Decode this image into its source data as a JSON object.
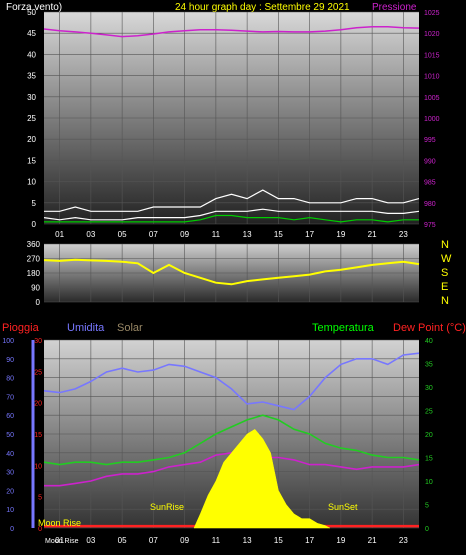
{
  "header": {
    "left_label": "Forza vento)",
    "title": "24 hour graph day : Settembre 29 2021",
    "right_label": "Pressione"
  },
  "colors": {
    "wind": "#ffffff",
    "gust": "#ffffff",
    "wind_avg": "#00cc00",
    "pressure": "#cc22cc",
    "direction": "#ffff00",
    "rain": "#ff2222",
    "humidity": "#7777ff",
    "solar": "#ffff00",
    "temperature": "#22cc22",
    "dewpoint": "#cc22cc",
    "label_solar": "#998866",
    "label_temp": "#00ff00",
    "label_dew": "#ff2222"
  },
  "compass": [
    "N",
    "W",
    "S",
    "E",
    "N"
  ],
  "bottom_labels": {
    "pioggia": "Pioggia",
    "umidita": "Umidita",
    "solar": "Solar",
    "temperatura": "Temperatura",
    "dewpoint": "Dew Point (°C)",
    "sunrise": "SunRise",
    "sunset": "SunSet",
    "moonrise": "Moon Rise",
    "moonset": "Moon Rise"
  },
  "chart_data": [
    {
      "type": "line",
      "name": "wind-pressure",
      "x_ticks": [
        "01",
        "03",
        "05",
        "07",
        "09",
        "11",
        "13",
        "15",
        "17",
        "19",
        "21",
        "23"
      ],
      "y_left_ticks": [
        0,
        5,
        10,
        15,
        20,
        25,
        30,
        35,
        40,
        45,
        50
      ],
      "y_left_range": [
        0,
        50
      ],
      "y_right_ticks": [
        975,
        980,
        985,
        990,
        995,
        1000,
        1005,
        1010,
        1015,
        1020,
        1025
      ],
      "y_right_range": [
        975,
        1025
      ],
      "x_range": [
        0,
        24
      ],
      "series": [
        {
          "key": "pressure",
          "axis": "right",
          "x": [
            0,
            1,
            2,
            3,
            4,
            5,
            6,
            7,
            8,
            9,
            10,
            11,
            12,
            13,
            14,
            15,
            16,
            17,
            18,
            19,
            20,
            21,
            22,
            23,
            24
          ],
          "y": [
            1021,
            1020.6,
            1020.3,
            1020,
            1019.6,
            1019.2,
            1019.4,
            1019.8,
            1020.3,
            1020.6,
            1020.8,
            1020.8,
            1020.7,
            1020.5,
            1020.3,
            1020.4,
            1020.3,
            1020.3,
            1020.5,
            1020.8,
            1021.3,
            1021.5,
            1021.5,
            1021.3,
            1021.2
          ]
        },
        {
          "key": "gust",
          "axis": "left",
          "x": [
            0,
            1,
            2,
            3,
            4,
            5,
            6,
            7,
            8,
            9,
            10,
            11,
            12,
            13,
            14,
            15,
            16,
            17,
            18,
            19,
            20,
            21,
            22,
            23,
            24
          ],
          "y": [
            3,
            3,
            4,
            3,
            3,
            3,
            3,
            4,
            4,
            4,
            4,
            6,
            7,
            6,
            8,
            6,
            6,
            5,
            5,
            5,
            6,
            6,
            5,
            5,
            6
          ]
        },
        {
          "key": "wind",
          "axis": "left",
          "x": [
            0,
            1,
            2,
            3,
            4,
            5,
            6,
            7,
            8,
            9,
            10,
            11,
            12,
            13,
            14,
            15,
            16,
            17,
            18,
            19,
            20,
            21,
            22,
            23,
            24
          ],
          "y": [
            1.5,
            1,
            1.5,
            1,
            1,
            1,
            1.5,
            1.5,
            1.5,
            1.5,
            2,
            3,
            3,
            3,
            3.5,
            3,
            3,
            3,
            3,
            3,
            3,
            3,
            2.5,
            2.5,
            3
          ]
        },
        {
          "key": "wind_avg",
          "axis": "left",
          "x": [
            0,
            1,
            2,
            3,
            4,
            5,
            6,
            7,
            8,
            9,
            10,
            11,
            12,
            13,
            14,
            15,
            16,
            17,
            18,
            19,
            20,
            21,
            22,
            23,
            24
          ],
          "y": [
            0.5,
            0.5,
            0.5,
            0.5,
            0.5,
            0.5,
            0.5,
            0.5,
            0.5,
            0.5,
            1,
            2,
            2,
            1.5,
            1.5,
            1.5,
            1,
            1.5,
            1,
            0.5,
            1,
            1,
            0.5,
            1,
            1
          ]
        }
      ]
    },
    {
      "type": "line",
      "name": "wind-direction",
      "y_ticks": [
        0,
        90,
        180,
        270,
        360
      ],
      "y_range": [
        0,
        360
      ],
      "x_range": [
        0,
        24
      ],
      "series": [
        {
          "key": "direction",
          "x": [
            0,
            1,
            2,
            3,
            4,
            5,
            6,
            7,
            8,
            9,
            10,
            11,
            12,
            13,
            14,
            15,
            16,
            17,
            18,
            19,
            20,
            21,
            22,
            23,
            24
          ],
          "y": [
            260,
            255,
            262,
            258,
            255,
            250,
            240,
            180,
            230,
            180,
            150,
            120,
            110,
            130,
            140,
            150,
            160,
            170,
            190,
            200,
            215,
            230,
            240,
            250,
            235
          ]
        }
      ]
    },
    {
      "type": "line",
      "name": "humidity-temperature",
      "x_ticks": [
        "01",
        "03",
        "05",
        "07",
        "09",
        "11",
        "13",
        "15",
        "17",
        "19",
        "21",
        "23"
      ],
      "x_extra": "Moon Rise",
      "x_range": [
        0,
        24
      ],
      "y_hum_ticks": [
        0,
        10,
        20,
        30,
        40,
        50,
        60,
        70,
        80,
        90,
        100
      ],
      "y_hum_range": [
        0,
        100
      ],
      "y_rain_ticks": [
        0,
        5,
        10,
        15,
        20,
        25,
        30
      ],
      "y_rain_range": [
        0,
        30
      ],
      "y_temp_ticks": [
        0,
        5,
        10,
        15,
        20,
        25,
        30,
        35,
        40
      ],
      "y_temp_range": [
        0,
        40
      ],
      "series": [
        {
          "key": "humidity",
          "axis": "hum",
          "x": [
            0,
            1,
            2,
            3,
            4,
            5,
            6,
            7,
            8,
            9,
            10,
            11,
            12,
            13,
            14,
            15,
            16,
            17,
            18,
            19,
            20,
            21,
            22,
            23,
            24
          ],
          "y": [
            73,
            72,
            74,
            78,
            83,
            85,
            83,
            84,
            87,
            86,
            83,
            80,
            74,
            66,
            67,
            65,
            63,
            70,
            80,
            87,
            90,
            90,
            87,
            92,
            93
          ]
        },
        {
          "key": "temperature",
          "axis": "temp",
          "x": [
            0,
            1,
            2,
            3,
            4,
            5,
            6,
            7,
            8,
            9,
            10,
            11,
            12,
            13,
            14,
            15,
            16,
            17,
            18,
            19,
            20,
            21,
            22,
            23,
            24
          ],
          "y": [
            14,
            13.5,
            14,
            14,
            13.5,
            14,
            14,
            14.5,
            15,
            16,
            18,
            20,
            21.5,
            23,
            24,
            23,
            21,
            20,
            18,
            17,
            16.5,
            15.5,
            15,
            15,
            14.5
          ]
        },
        {
          "key": "dewpoint",
          "axis": "temp",
          "x": [
            0,
            1,
            2,
            3,
            4,
            5,
            6,
            7,
            8,
            9,
            10,
            11,
            12,
            13,
            14,
            15,
            16,
            17,
            18,
            19,
            20,
            21,
            22,
            23,
            24
          ],
          "y": [
            9,
            9,
            9.5,
            10,
            11,
            11.5,
            11.5,
            12,
            13,
            13.5,
            14,
            15.5,
            16,
            15,
            15,
            15,
            14.5,
            13.5,
            13.5,
            13,
            12.5,
            13,
            13,
            13,
            13.5
          ]
        },
        {
          "key": "rain",
          "axis": "rain",
          "x": [
            0,
            24
          ],
          "y": [
            0.3,
            0.3
          ]
        },
        {
          "key": "solar",
          "axis": "temp",
          "x": [
            9.6,
            10,
            10.5,
            11,
            11.5,
            12,
            12.5,
            13,
            13.5,
            14,
            14.5,
            15,
            15.5,
            16,
            16.5,
            17,
            17.5,
            18,
            18.3
          ],
          "y": [
            0,
            3,
            7,
            10,
            14,
            16,
            18,
            20,
            21,
            19,
            16,
            8,
            5,
            3,
            2,
            2,
            1,
            0.5,
            0
          ]
        }
      ]
    }
  ]
}
